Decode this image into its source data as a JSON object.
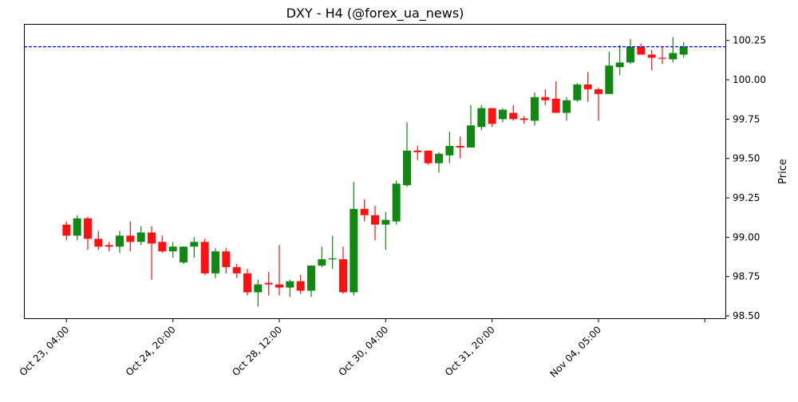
{
  "chart_data": {
    "type": "candlestick",
    "title": "DXY - H4 (@forex_ua_news)",
    "xlabel": "",
    "ylabel": "Price",
    "ylim": [
      98.48,
      100.355
    ],
    "xlim": [
      -4,
      62
    ],
    "grid": false,
    "yaxis_side": "right",
    "y_ticks": [
      "98.50",
      "98.75",
      "99.00",
      "99.25",
      "99.50",
      "99.75",
      "100.00",
      "100.25"
    ],
    "x_ticks": [
      {
        "index": 0,
        "label": "Oct 23, 04:00"
      },
      {
        "index": 10,
        "label": "Oct 24, 20:00"
      },
      {
        "index": 20,
        "label": "Oct 28, 12:00"
      },
      {
        "index": 30,
        "label": "Oct 30, 04:00"
      },
      {
        "index": 40,
        "label": "Oct 31, 20:00"
      },
      {
        "index": 50,
        "label": "Nov 04, 05:00"
      },
      {
        "index": 60,
        "label": ""
      }
    ],
    "reference_line": {
      "value": 100.21,
      "color": "#0000ff",
      "style": "dashed"
    },
    "colors": {
      "up": "#118811",
      "down": "#ff1111"
    },
    "ohlc": [
      [
        99.08,
        99.1,
        98.98,
        99.01
      ],
      [
        99.01,
        99.14,
        98.98,
        99.12
      ],
      [
        99.12,
        99.13,
        98.92,
        98.99
      ],
      [
        98.99,
        99.04,
        98.92,
        98.94
      ],
      [
        98.95,
        98.97,
        98.91,
        98.94
      ],
      [
        98.94,
        99.04,
        98.9,
        99.01
      ],
      [
        99.01,
        99.1,
        98.91,
        98.97
      ],
      [
        98.97,
        99.07,
        98.95,
        99.03
      ],
      [
        99.03,
        99.07,
        98.73,
        98.96
      ],
      [
        98.97,
        99.01,
        98.9,
        98.91
      ],
      [
        98.91,
        98.97,
        98.87,
        98.94
      ],
      [
        98.84,
        98.94,
        98.83,
        98.94
      ],
      [
        98.94,
        99.0,
        98.87,
        98.97
      ],
      [
        98.97,
        98.99,
        98.76,
        98.77
      ],
      [
        98.77,
        98.93,
        98.74,
        98.91
      ],
      [
        98.91,
        98.93,
        98.77,
        98.81
      ],
      [
        98.81,
        98.83,
        98.74,
        98.77
      ],
      [
        98.77,
        98.8,
        98.63,
        98.65
      ],
      [
        98.65,
        98.73,
        98.56,
        98.7
      ],
      [
        98.71,
        98.78,
        98.63,
        98.7
      ],
      [
        98.7,
        98.95,
        98.63,
        98.68
      ],
      [
        98.68,
        98.73,
        98.62,
        98.72
      ],
      [
        98.72,
        98.76,
        98.64,
        98.66
      ],
      [
        98.66,
        98.82,
        98.62,
        98.82
      ],
      [
        98.82,
        98.94,
        98.81,
        98.86
      ],
      [
        98.86,
        99.01,
        98.8,
        98.865
      ],
      [
        98.86,
        98.94,
        98.64,
        98.65
      ],
      [
        98.65,
        99.35,
        98.63,
        99.18
      ],
      [
        99.18,
        99.24,
        99.1,
        99.14
      ],
      [
        99.14,
        99.2,
        98.98,
        99.08
      ],
      [
        99.08,
        99.16,
        98.92,
        99.11
      ],
      [
        99.1,
        99.36,
        99.08,
        99.34
      ],
      [
        99.33,
        99.73,
        99.32,
        99.55
      ],
      [
        99.55,
        99.58,
        99.49,
        99.54
      ],
      [
        99.55,
        99.55,
        99.46,
        99.47
      ],
      [
        99.47,
        99.54,
        99.41,
        99.53
      ],
      [
        99.52,
        99.67,
        99.47,
        99.58
      ],
      [
        99.58,
        99.64,
        99.5,
        99.57
      ],
      [
        99.57,
        99.84,
        99.57,
        99.71
      ],
      [
        99.7,
        99.84,
        99.68,
        99.82
      ],
      [
        99.82,
        99.82,
        99.7,
        99.72
      ],
      [
        99.75,
        99.82,
        99.73,
        99.81
      ],
      [
        99.79,
        99.84,
        99.74,
        99.75
      ],
      [
        99.755,
        99.77,
        99.72,
        99.745
      ],
      [
        99.74,
        99.92,
        99.71,
        99.89
      ],
      [
        99.89,
        99.94,
        99.84,
        99.87
      ],
      [
        99.88,
        99.99,
        99.79,
        99.79
      ],
      [
        99.79,
        99.89,
        99.74,
        99.87
      ],
      [
        99.87,
        99.98,
        99.86,
        99.97
      ],
      [
        99.97,
        100.05,
        99.86,
        99.94
      ],
      [
        99.94,
        99.95,
        99.74,
        99.91
      ],
      [
        99.91,
        100.18,
        99.91,
        100.09
      ],
      [
        100.08,
        100.22,
        100.03,
        100.11
      ],
      [
        100.11,
        100.26,
        100.1,
        100.21
      ],
      [
        100.21,
        100.23,
        100.16,
        100.16
      ],
      [
        100.16,
        100.19,
        100.06,
        100.14
      ],
      [
        100.14,
        100.21,
        100.1,
        100.135
      ],
      [
        100.13,
        100.27,
        100.11,
        100.17
      ],
      [
        100.16,
        100.24,
        100.14,
        100.21
      ]
    ]
  }
}
